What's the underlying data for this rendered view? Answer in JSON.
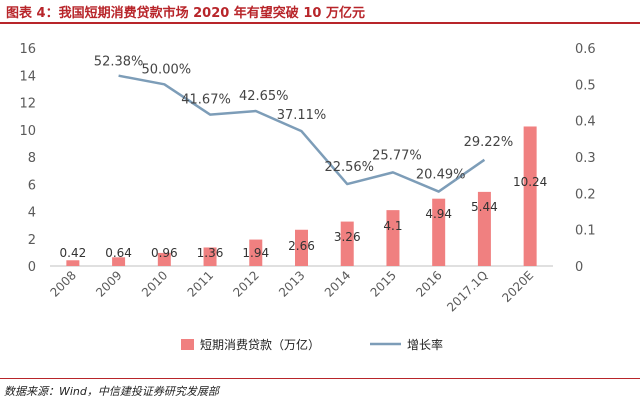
{
  "title": "图表 4：我国短期消费贷款市场 2020 年有望突破 10 万亿元",
  "source": "数据来源：Wind，中信建投证券研究发展部",
  "colors": {
    "bar": "#f08080",
    "line": "#7d9db8",
    "title": "#b8252a",
    "axis": "#c0c0c0"
  },
  "chart_data": {
    "type": "bar",
    "categories": [
      "2008",
      "2009",
      "2010",
      "2011",
      "2012",
      "2013",
      "2014",
      "2015",
      "2016",
      "2017.1Q",
      "2020E"
    ],
    "series": [
      {
        "name": "短期消费贷款（万亿）",
        "type": "bar",
        "axis": "left",
        "values": [
          0.42,
          0.64,
          0.96,
          1.36,
          1.94,
          2.66,
          3.26,
          4.1,
          4.94,
          5.44,
          10.24
        ],
        "labels": [
          "0.42",
          "0.64",
          "0.96",
          "1.36",
          "1.94",
          "2.66",
          "3.26",
          "4.1",
          "4.94",
          "5.44",
          "10.24"
        ]
      },
      {
        "name": "增长率",
        "type": "line",
        "axis": "right",
        "values": [
          null,
          0.5238,
          0.5,
          0.4167,
          0.4265,
          0.3711,
          0.2256,
          0.2577,
          0.2049,
          0.2922,
          null
        ],
        "labels": [
          "",
          "52.38%",
          "50.00%",
          "41.67%",
          "42.65%",
          "37.11%",
          "22.56%",
          "25.77%",
          "20.49%",
          "29.22%",
          ""
        ]
      }
    ],
    "ylim_left": [
      0,
      16
    ],
    "yticks_left": [
      "0",
      "2",
      "4",
      "6",
      "8",
      "10",
      "12",
      "14",
      "16"
    ],
    "ylim_right": [
      0,
      0.6
    ],
    "yticks_right": [
      "0",
      "0.1",
      "0.2",
      "0.3",
      "0.4",
      "0.5",
      "0.6"
    ],
    "grid": false,
    "legend_position": "bottom"
  }
}
